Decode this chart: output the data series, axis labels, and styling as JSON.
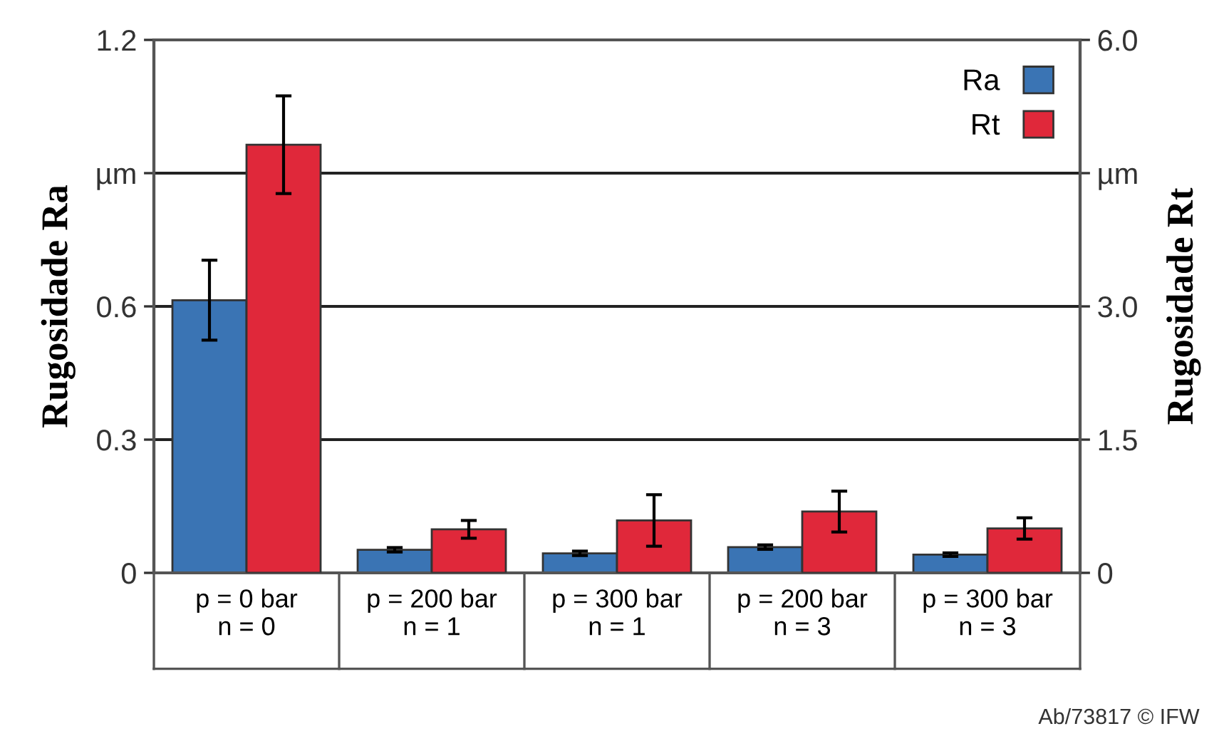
{
  "chart_data": {
    "type": "bar",
    "categories": [
      "p = 0 bar\nn = 0",
      "p = 200 bar\nn = 1",
      "p = 300 bar\nn = 1",
      "p = 200 bar\nn = 3",
      "p = 300 bar\nn = 3"
    ],
    "series": [
      {
        "name": "Ra",
        "color": "#3a74b4",
        "values": [
          0.614,
          0.052,
          0.044,
          0.058,
          0.041
        ],
        "errors": [
          0.09,
          0.005,
          0.005,
          0.005,
          0.004
        ]
      },
      {
        "name": "Rt",
        "color": "#e0283a",
        "axis": "y2",
        "values": [
          4.82,
          0.49,
          0.59,
          0.69,
          0.5
        ],
        "errors": [
          0.55,
          0.1,
          0.29,
          0.23,
          0.12
        ]
      }
    ],
    "ylabel": "Rugosidade Ra",
    "y2label": "Rugosidade Rt",
    "ylim": [
      0,
      1.2
    ],
    "yticks": [
      0,
      0.3,
      0.6,
      {
        "value": 0.9,
        "label": "µm"
      },
      1.2
    ],
    "y2lim": [
      0,
      6.0
    ],
    "y2ticks": [
      {
        "value": 0,
        "label": "0"
      },
      {
        "value": 1.5,
        "label": "1.5"
      },
      {
        "value": 3.0,
        "label": "3.0"
      },
      {
        "value": 4.5,
        "label": "µm"
      },
      {
        "value": 6.0,
        "label": "6.0"
      }
    ],
    "grid": "y",
    "legend": "top right",
    "annotations": [
      "Ab/73817 © IFW"
    ]
  }
}
